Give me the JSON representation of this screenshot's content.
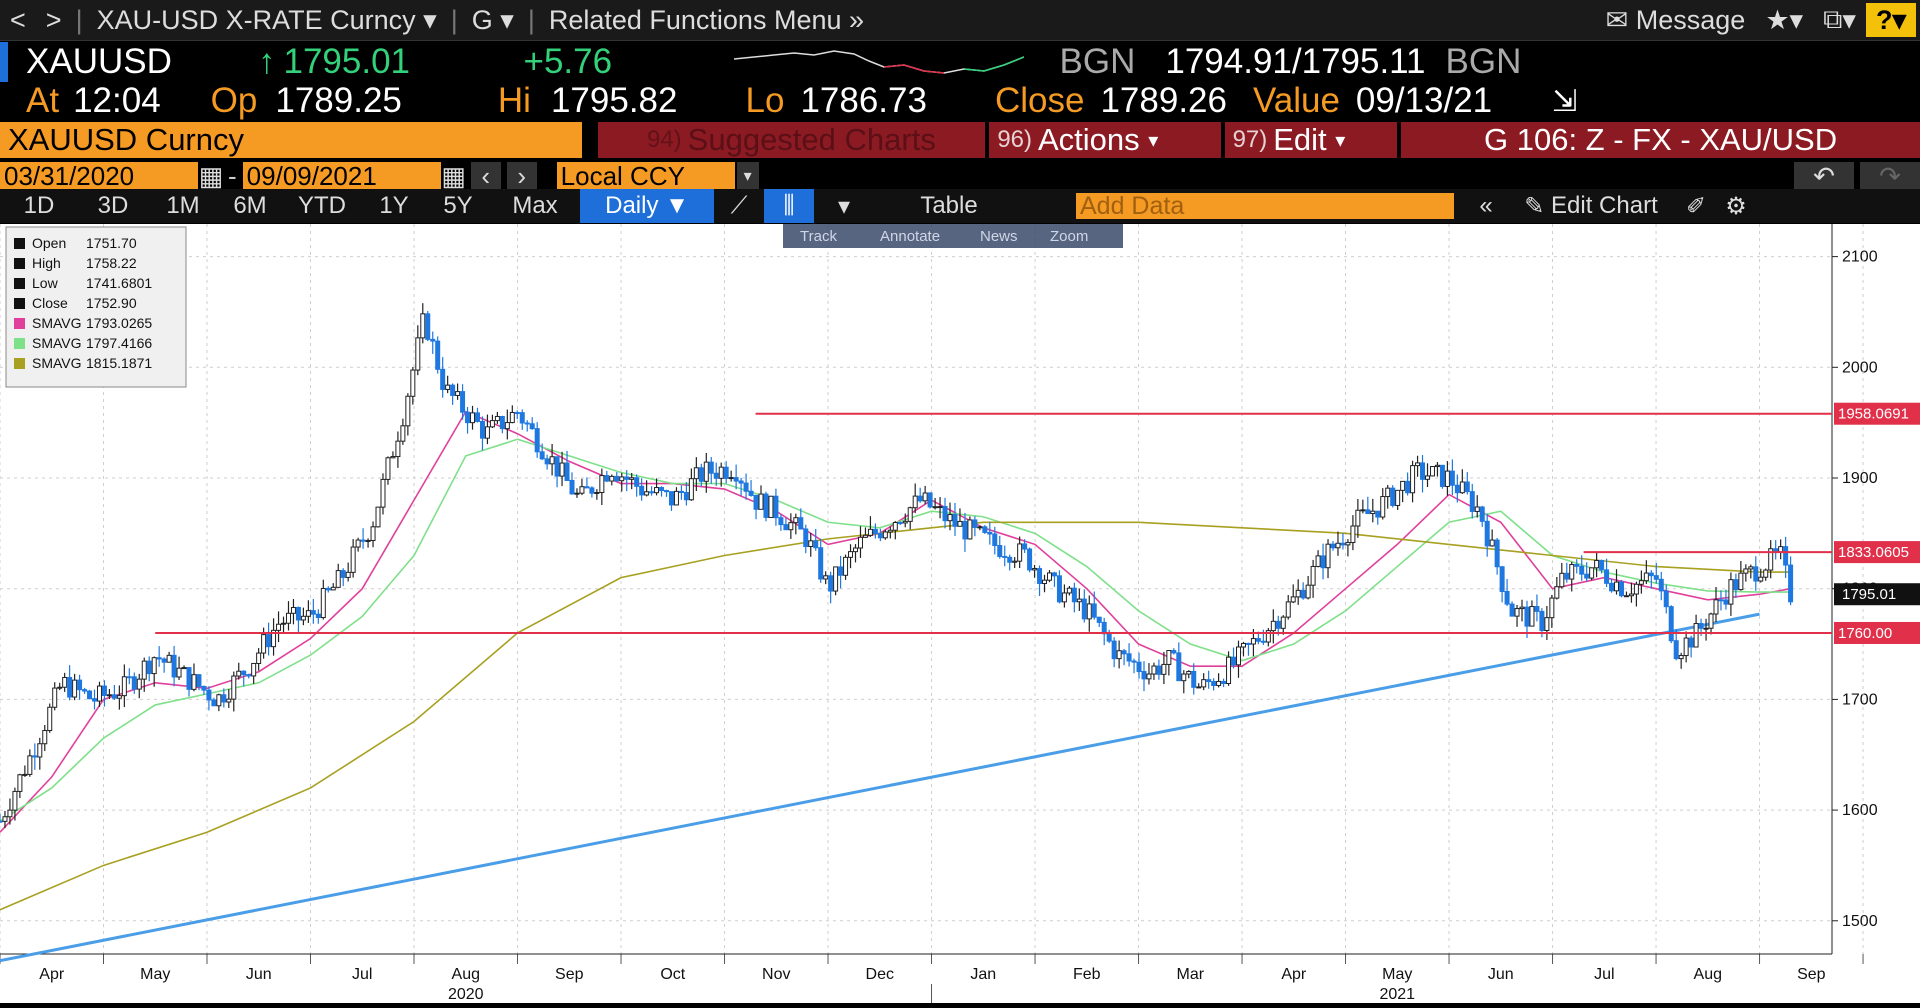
{
  "nav": {
    "back": "<",
    "forward": ">",
    "security_title": "XAU-USD X-RATE Curncy",
    "menu_g": "G",
    "related": "Related Functions Menu",
    "message": "Message",
    "help": "?"
  },
  "quote": {
    "ticker": "XAUUSD",
    "last": "1795.01",
    "change": "+5.76",
    "source_left": "BGN",
    "bid_ask": "1794.91/1795.11",
    "source_right": "BGN",
    "at_label": "At",
    "at": "12:04",
    "op_label": "Op",
    "op": "1789.25",
    "hi_label": "Hi",
    "hi": "1795.82",
    "lo_label": "Lo",
    "lo": "1786.73",
    "close_label": "Close",
    "close": "1789.26",
    "value_label": "Value",
    "value": "09/13/21"
  },
  "functions": {
    "security": "XAUUSD Curncy",
    "suggested_num": "94)",
    "suggested": "Suggested Charts",
    "actions_num": "96)",
    "actions": "Actions",
    "edit_num": "97)",
    "edit": "Edit",
    "page": "G 106: Z - FX - XAU/USD"
  },
  "range": {
    "start": "03/31/2020",
    "dash": "-",
    "end": "09/09/2021",
    "ccy": "Local CCY"
  },
  "periods": [
    "1D",
    "3D",
    "1M",
    "6M",
    "YTD",
    "1Y",
    "5Y",
    "Max"
  ],
  "frequency": "Daily",
  "table_label": "Table",
  "add_data_placeholder": "Add Data",
  "edit_chart": "Edit Chart",
  "toolbar": [
    "Track",
    "Annotate",
    "News",
    "Zoom"
  ],
  "legend": [
    {
      "name": "Open",
      "value": "1751.70",
      "color": "#ffffff"
    },
    {
      "name": "High",
      "value": "1758.22",
      "color": "#ffffff"
    },
    {
      "name": "Low",
      "value": "1741.6801",
      "color": "#ffffff"
    },
    {
      "name": "Close",
      "value": "1752.90",
      "color": "#ffffff"
    },
    {
      "name": "SMAVG",
      "value": "1793.0265",
      "color": "#e0409b"
    },
    {
      "name": "SMAVG",
      "value": "1797.4166",
      "color": "#7fe08a"
    },
    {
      "name": "SMAVG",
      "value": "1815.1871",
      "color": "#a8a020"
    }
  ],
  "chart_data": {
    "type": "line",
    "ylim": [
      1470,
      2115
    ],
    "yticks": [
      1500,
      1600,
      1700,
      1800,
      1900,
      2000,
      2100
    ],
    "x_labels": [
      {
        "t": 0.5,
        "label": "Apr"
      },
      {
        "t": 1.5,
        "label": "May"
      },
      {
        "t": 2.5,
        "label": "Jun"
      },
      {
        "t": 3.5,
        "label": "Jul"
      },
      {
        "t": 4.5,
        "label": "Aug"
      },
      {
        "t": 5.5,
        "label": "Sep"
      },
      {
        "t": 6.5,
        "label": "Oct"
      },
      {
        "t": 7.5,
        "label": "Nov"
      },
      {
        "t": 8.5,
        "label": "Dec"
      },
      {
        "t": 9.5,
        "label": "Jan"
      },
      {
        "t": 10.5,
        "label": "Feb"
      },
      {
        "t": 11.5,
        "label": "Mar"
      },
      {
        "t": 12.5,
        "label": "Apr"
      },
      {
        "t": 13.5,
        "label": "May"
      },
      {
        "t": 14.5,
        "label": "Jun"
      },
      {
        "t": 15.5,
        "label": "Jul"
      },
      {
        "t": 16.5,
        "label": "Aug"
      },
      {
        "t": 17.5,
        "label": "Sep"
      }
    ],
    "year_labels": [
      {
        "t": 4.5,
        "label": "2020"
      },
      {
        "t": 13.5,
        "label": "2021"
      }
    ],
    "price_series": {
      "name": "XAUUSD",
      "t": [
        0,
        0.3,
        0.6,
        0.9,
        1.2,
        1.5,
        1.8,
        2.1,
        2.4,
        2.7,
        3.0,
        3.3,
        3.6,
        3.9,
        4.1,
        4.3,
        4.5,
        4.7,
        5.0,
        5.3,
        5.6,
        5.9,
        6.2,
        6.5,
        6.8,
        7.1,
        7.3,
        7.5,
        7.8,
        8.0,
        8.3,
        8.6,
        8.9,
        9.2,
        9.4,
        9.6,
        9.9,
        10.2,
        10.5,
        10.8,
        11.1,
        11.3,
        11.6,
        11.9,
        12.2,
        12.5,
        12.8,
        13.1,
        13.4,
        13.7,
        14.0,
        14.3,
        14.6,
        14.9,
        15.1,
        15.4,
        15.7,
        16.0,
        16.2,
        16.4,
        16.7,
        17.0,
        17.2,
        17.3
      ],
      "close": [
        1590,
        1650,
        1715,
        1700,
        1710,
        1740,
        1720,
        1700,
        1730,
        1770,
        1775,
        1810,
        1860,
        1960,
        2045,
        1980,
        1960,
        1940,
        1960,
        1920,
        1880,
        1910,
        1890,
        1880,
        1905,
        1910,
        1880,
        1870,
        1845,
        1800,
        1840,
        1860,
        1880,
        1860,
        1850,
        1840,
        1830,
        1800,
        1780,
        1740,
        1725,
        1735,
        1710,
        1730,
        1760,
        1790,
        1830,
        1860,
        1880,
        1905,
        1900,
        1870,
        1780,
        1770,
        1810,
        1820,
        1800,
        1810,
        1745,
        1760,
        1800,
        1820,
        1830,
        1795
      ]
    },
    "sma_series": [
      {
        "name": "SMAVG",
        "color": "#e0409b",
        "t": [
          0,
          0.5,
          1,
          1.5,
          2,
          2.5,
          3,
          3.5,
          4,
          4.5,
          5,
          5.5,
          6,
          6.5,
          7,
          7.5,
          8,
          8.5,
          9,
          9.5,
          10,
          10.5,
          11,
          11.5,
          12,
          12.5,
          13,
          13.5,
          14,
          14.5,
          15,
          15.5,
          16,
          16.5,
          17,
          17.3
        ],
        "values": [
          1580,
          1630,
          1700,
          1715,
          1710,
          1725,
          1755,
          1800,
          1880,
          1960,
          1940,
          1915,
          1895,
          1895,
          1890,
          1870,
          1840,
          1850,
          1880,
          1855,
          1840,
          1800,
          1750,
          1730,
          1730,
          1760,
          1800,
          1840,
          1885,
          1860,
          1800,
          1810,
          1800,
          1790,
          1795,
          1800
        ]
      },
      {
        "name": "SMAVG",
        "color": "#7fe08a",
        "t": [
          0,
          0.5,
          1,
          1.5,
          2,
          2.5,
          3,
          3.5,
          4,
          4.5,
          5,
          5.5,
          6,
          6.5,
          7,
          7.5,
          8,
          8.5,
          9,
          9.5,
          10,
          10.5,
          11,
          11.5,
          12,
          12.5,
          13,
          13.5,
          14,
          14.5,
          15,
          15.5,
          16,
          16.5,
          17,
          17.3
        ],
        "values": [
          1590,
          1620,
          1665,
          1695,
          1705,
          1715,
          1740,
          1775,
          1830,
          1920,
          1935,
          1920,
          1905,
          1895,
          1895,
          1880,
          1860,
          1855,
          1870,
          1865,
          1850,
          1820,
          1780,
          1750,
          1735,
          1750,
          1780,
          1820,
          1860,
          1870,
          1830,
          1815,
          1805,
          1798,
          1797,
          1797
        ]
      },
      {
        "name": "SMAVG",
        "color": "#a8a020",
        "t": [
          0,
          1,
          2,
          3,
          4,
          5,
          6,
          7,
          8,
          9,
          9.5,
          10,
          11,
          12,
          13,
          14,
          15,
          16,
          17,
          17.3
        ],
        "values": [
          1510,
          1550,
          1580,
          1620,
          1680,
          1760,
          1810,
          1830,
          1845,
          1855,
          1860,
          1860,
          1860,
          1855,
          1850,
          1840,
          1830,
          1820,
          1815,
          1815
        ]
      }
    ],
    "horizontal_lines": [
      {
        "value": 1958.0691,
        "label": "1958.0691",
        "t_start": 7.3,
        "color": "#e0304a"
      },
      {
        "value": 1833.0605,
        "label": "1833.0605",
        "t_start": 15.3,
        "color": "#e0304a"
      },
      {
        "value": 1760.0,
        "label": "1760.00",
        "t_start": 1.5,
        "color": "#e0304a"
      }
    ],
    "trendline": {
      "t": [
        0,
        17.0
      ],
      "values": [
        1464,
        1777
      ],
      "color": "#4a9ee8"
    },
    "last_price_label": "1795.01"
  }
}
